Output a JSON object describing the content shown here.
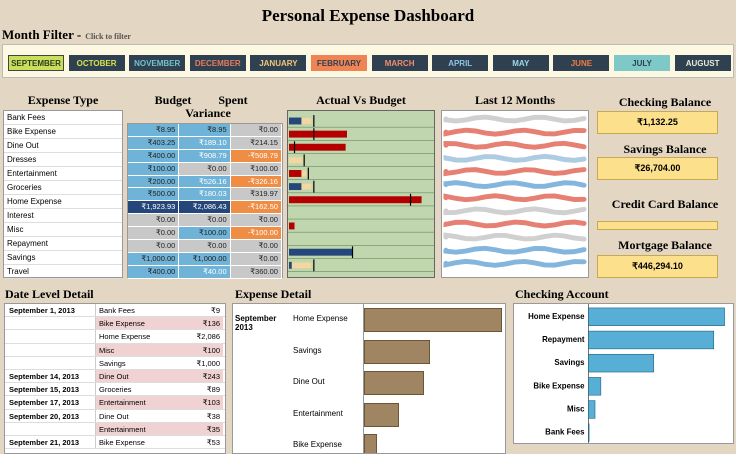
{
  "title": "Personal Expense Dashboard",
  "month_filter": {
    "label": "Month Filter -",
    "hint": "Click to filter",
    "months": [
      {
        "label": "SEPTEMBER",
        "bg": "#c9de5a",
        "fg": "#2e3c1e",
        "selected": true
      },
      {
        "label": "OCTOBER",
        "bg": "#2f4150",
        "fg": "#d7e24b"
      },
      {
        "label": "NOVEMBER",
        "bg": "#2f4150",
        "fg": "#74c0cf"
      },
      {
        "label": "DECEMBER",
        "bg": "#2f4150",
        "fg": "#e67c5a"
      },
      {
        "label": "JANUARY",
        "bg": "#2f4150",
        "fg": "#f3c879"
      },
      {
        "label": "FEBRUARY",
        "bg": "#ef8354",
        "fg": "#2f4150"
      },
      {
        "label": "MARCH",
        "bg": "#2f4150",
        "fg": "#f28b6e"
      },
      {
        "label": "APRIL",
        "bg": "#2f4150",
        "fg": "#8fc3e4"
      },
      {
        "label": "MAY",
        "bg": "#2f4150",
        "fg": "#9fd8e8"
      },
      {
        "label": "JUNE",
        "bg": "#2f4150",
        "fg": "#f07b45"
      },
      {
        "label": "JULY",
        "bg": "#7ec9c8",
        "fg": "#2f4150"
      },
      {
        "label": "AUGUST",
        "bg": "#2f4150",
        "fg": "#e8edd9"
      }
    ]
  },
  "expense_type": {
    "header": "Expense Type",
    "items": [
      "Bank Fees",
      "Bike Expense",
      "Dine Out",
      "Dresses",
      "Entertainment",
      "Groceries",
      "Home Expense",
      "Interest",
      "Misc",
      "Repayment",
      "Savings",
      "Travel"
    ]
  },
  "budget": {
    "headers": [
      "Budget",
      "Spent",
      "Variance"
    ],
    "rows": [
      {
        "budget": "₹8.95",
        "spent": "₹8.95",
        "variance": "₹0.00"
      },
      {
        "budget": "₹403.25",
        "spent": "₹189.10",
        "variance": "₹214.15"
      },
      {
        "budget": "₹400.00",
        "spent": "₹908.79",
        "variance": "-₹508.79"
      },
      {
        "budget": "₹100.00",
        "spent": "₹0.00",
        "variance": "₹100.00"
      },
      {
        "budget": "₹200.00",
        "spent": "₹526.16",
        "variance": "-₹326.16"
      },
      {
        "budget": "₹500.00",
        "spent": "₹180.03",
        "variance": "₹319.97"
      },
      {
        "budget": "₹1,923.93",
        "spent": "₹2,086.43",
        "variance": "-₹162.50"
      },
      {
        "budget": "₹0.00",
        "spent": "₹0.00",
        "variance": "₹0.00"
      },
      {
        "budget": "₹0.00",
        "spent": "₹100.00",
        "variance": "-₹100.00"
      },
      {
        "budget": "₹0.00",
        "spent": "₹0.00",
        "variance": "₹0.00"
      },
      {
        "budget": "₹1,000.00",
        "spent": "₹1,000.00",
        "variance": "₹0.00"
      },
      {
        "budget": "₹400.00",
        "spent": "₹40.00",
        "variance": "₹360.00"
      }
    ],
    "colors": {
      "light_blue": "#6fb3d8",
      "dark_blue": "#25467a",
      "grey": "#c8c8c8",
      "orange": "#f08d45",
      "pale_blue": "#9ccbe4"
    }
  },
  "actual_vs_budget": {
    "header": "Actual Vs Budget",
    "spent_ratio": [
      0.09,
      0.42,
      0.41,
      0,
      0.09,
      0.09,
      0.96,
      0,
      0.04,
      0,
      0.46,
      0.02
    ],
    "budget_marker": [
      0.18,
      0.18,
      0.04,
      0.11,
      0.14,
      0.18,
      0.88,
      0,
      0,
      0,
      0.46,
      0.18
    ],
    "bar_colors": [
      "#25467a",
      "#b40000",
      "#b40000",
      "#25467a",
      "#b40000",
      "#25467a",
      "#b40000",
      "#25467a",
      "#b40000",
      "#25467a",
      "#25467a",
      "#25467a"
    ]
  },
  "last_12_months": {
    "header": "Last 12 Months"
  },
  "balances": [
    {
      "label": "Checking Balance",
      "value": "₹1,132.25"
    },
    {
      "label": "Savings Balance",
      "value": "₹26,704.00"
    },
    {
      "label": "Credit Card Balance",
      "value": ""
    },
    {
      "label": "Mortgage Balance",
      "value": "₹446,294.10"
    }
  ],
  "date_level": {
    "header": "Date Level Detail",
    "rows": [
      {
        "date": "September 1, 2013",
        "cat": "Bank Fees",
        "amt": "₹9",
        "hl": false
      },
      {
        "date": "",
        "cat": "Bike Expense",
        "amt": "₹136",
        "hl": true
      },
      {
        "date": "",
        "cat": "Home Expense",
        "amt": "₹2,086",
        "hl": false
      },
      {
        "date": "",
        "cat": "Misc",
        "amt": "₹100",
        "hl": true
      },
      {
        "date": "",
        "cat": "Savings",
        "amt": "₹1,000",
        "hl": false
      },
      {
        "date": "September 14, 2013",
        "cat": "Dine Out",
        "amt": "₹243",
        "hl": true
      },
      {
        "date": "September 15, 2013",
        "cat": "Groceries",
        "amt": "₹89",
        "hl": false
      },
      {
        "date": "September 17, 2013",
        "cat": "Entertainment",
        "amt": "₹103",
        "hl": true
      },
      {
        "date": "September 20, 2013",
        "cat": "Dine Out",
        "amt": "₹38",
        "hl": false
      },
      {
        "date": "",
        "cat": "Entertainment",
        "amt": "₹35",
        "hl": true
      },
      {
        "date": "September 21, 2013",
        "cat": "Bike Expense",
        "amt": "₹53",
        "hl": false
      }
    ]
  },
  "expense_detail": {
    "header": "Expense Detail",
    "period": "September 2013",
    "items": [
      {
        "label": "Home Expense",
        "value": 2086
      },
      {
        "label": "Savings",
        "value": 1000
      },
      {
        "label": "Dine Out",
        "value": 908.79
      },
      {
        "label": "Entertainment",
        "value": 526.16
      },
      {
        "label": "Bike Expense",
        "value": 189.1
      }
    ]
  },
  "checking_account": {
    "header": "Checking Account",
    "items": [
      {
        "label": "Home Expense",
        "value": 2086
      },
      {
        "label": "Repayment",
        "value": 1920
      },
      {
        "label": "Savings",
        "value": 1000
      },
      {
        "label": "Bike Expense",
        "value": 189
      },
      {
        "label": "Misc",
        "value": 100
      },
      {
        "label": "Bank Fees",
        "value": 9
      }
    ]
  }
}
